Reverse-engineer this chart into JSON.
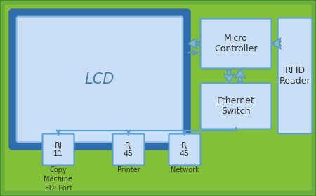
{
  "bg_color": "#6ab040",
  "bg_inner_color": "#8cc840",
  "lcd_border_color": "#2e6eb0",
  "lcd_fill_color": "#c8dff5",
  "box_fill": "#c8dff5",
  "box_edge": "#5a9fd4",
  "arrow_fill": "#7ab8d0",
  "arrow_edge": "#5a9ab8",
  "lcd_text": "LCD",
  "micro_text": "Micro\nController",
  "ethernet_text": "Ethernet\nSwitch",
  "rfid_text": "RFID\nReader",
  "rj11_text": "RJ\n11",
  "rj45_1_text": "RJ\n45",
  "rj45_2_text": "RJ\n45",
  "label1": "Copy\nMachine\nFDI Port",
  "label2": "Printer",
  "label3": "Network",
  "text_color": "#333333",
  "lcd_text_color": "#4a7ab0",
  "wire_color": "#5a9fd4",
  "figsize": [
    4.5,
    2.79
  ],
  "dpi": 100
}
